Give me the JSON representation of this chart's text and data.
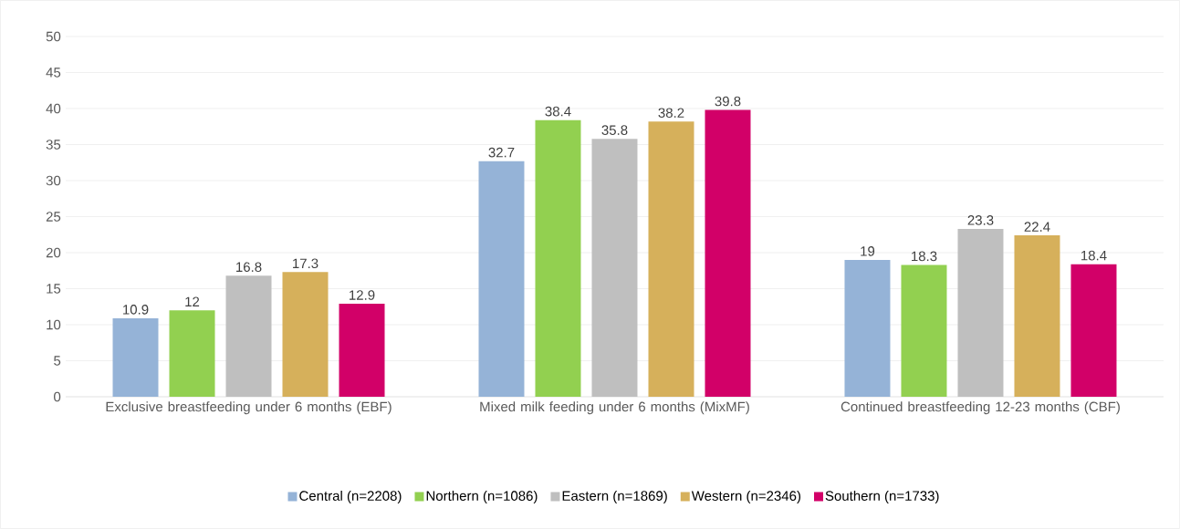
{
  "chart_data": {
    "type": "bar",
    "categories": [
      "Exclusive breastfeeding under 6 months (EBF)",
      "Mixed milk feeding under 6 months (MixMF)",
      "Continued breastfeeding 12-23 months (CBF)"
    ],
    "series": [
      {
        "name": "Central (n=2208)",
        "color": "#95b3d7",
        "values": [
          10.9,
          32.7,
          19
        ]
      },
      {
        "name": "Northern (n=1086)",
        "color": "#92d050",
        "values": [
          12,
          38.4,
          18.3
        ]
      },
      {
        "name": "Eastern (n=1869)",
        "color": "#bfbfbf",
        "values": [
          16.8,
          35.8,
          23.3
        ]
      },
      {
        "name": "Western (n=2346)",
        "color": "#d6b05b",
        "values": [
          17.3,
          38.2,
          22.4
        ]
      },
      {
        "name": "Southern (n=1733)",
        "color": "#d20068",
        "values": [
          12.9,
          39.8,
          18.4
        ]
      }
    ],
    "ylim": [
      0,
      50
    ],
    "yticks": [
      0,
      5,
      10,
      15,
      20,
      25,
      30,
      35,
      40,
      45,
      50
    ],
    "grid": "y",
    "legend": "bottom",
    "data_labels": true
  }
}
